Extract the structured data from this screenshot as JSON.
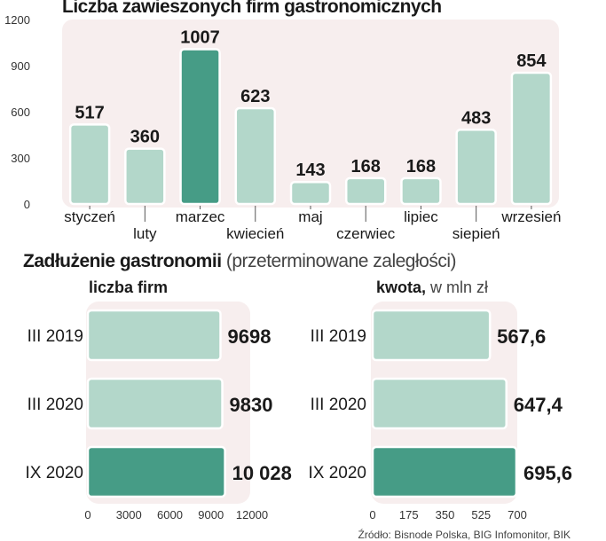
{
  "chart_data": [
    {
      "type": "bar",
      "title": "Liczba zawieszonych firm gastronomicznych",
      "categories": [
        "styczeń",
        "luty",
        "marzec",
        "kwiecień",
        "maj",
        "czerwiec",
        "lipiec",
        "siepień",
        "wrzesień"
      ],
      "values": [
        517,
        360,
        1007,
        623,
        143,
        168,
        168,
        483,
        854
      ],
      "highlight_index": 2,
      "ylim": [
        0,
        1200
      ],
      "yticks": [
        0,
        300,
        600,
        900,
        1200
      ]
    },
    {
      "type": "bar",
      "orientation": "horizontal",
      "section_title": "Zadłużenie gastronomii",
      "section_subtitle": "(przeterminowane zaległości)",
      "title": "liczba firm",
      "categories": [
        "III 2019",
        "III 2020",
        "IX 2020"
      ],
      "values": [
        9698,
        9830,
        10028
      ],
      "value_labels": [
        "9698",
        "9830",
        "10 028"
      ],
      "highlight_index": 2,
      "xlim": [
        0,
        12000
      ],
      "xticks": [
        0,
        3000,
        6000,
        9000,
        12000
      ]
    },
    {
      "type": "bar",
      "orientation": "horizontal",
      "title": "kwota,",
      "title_suffix": "w mln zł",
      "categories": [
        "III 2019",
        "III 2020",
        "IX 2020"
      ],
      "values": [
        567.6,
        647.4,
        695.6
      ],
      "value_labels": [
        "567,6",
        "647,4",
        "695,6"
      ],
      "highlight_index": 2,
      "xlim": [
        0,
        700
      ],
      "xticks": [
        0,
        175,
        350,
        525,
        700
      ]
    }
  ],
  "source": "Źródło: Bisnode Polska, BIG Infomonitor, BIK",
  "colors": {
    "bar_light": "#b3d7ca",
    "bar_dark": "#469c86",
    "bar_border": "#ffffff",
    "panel_bg": "#f7eeee",
    "axis": "#555555"
  }
}
